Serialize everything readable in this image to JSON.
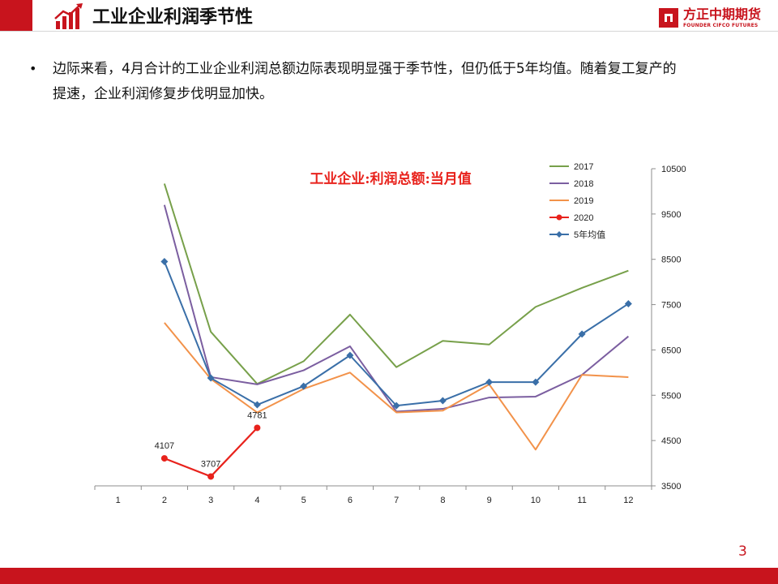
{
  "header": {
    "title": "工业企业利润季节性",
    "icon": "rising-bar-chart-icon",
    "accent_color": "#c8141d"
  },
  "brand": {
    "name": "方正中期期货",
    "subtitle": "FOUNDER CIFCO FUTURES",
    "logo": "founder-logo-icon"
  },
  "bullet": {
    "text_line1": "边际来看，4月合计的工业企业利润总额边际表现明显强于季节性，但仍低于5年均值。随着复工复产的",
    "text_line2": "提速，企业利润修复步伐明显加快。"
  },
  "page_number": "3",
  "chart_data": {
    "type": "line",
    "title": "工业企业:利润总额:当月值",
    "title_color": "#e8221c",
    "x": [
      1,
      2,
      3,
      4,
      5,
      6,
      7,
      8,
      9,
      10,
      11,
      12
    ],
    "x_tick_labels": [
      "1",
      "2",
      "3",
      "4",
      "5",
      "6",
      "7",
      "8",
      "9",
      "10",
      "11",
      "12"
    ],
    "y_ticks": [
      3500,
      4500,
      5500,
      6500,
      7500,
      8500,
      9500,
      10500
    ],
    "ylim": [
      3500,
      10500
    ],
    "y_axis_side": "right",
    "grid": false,
    "legend_position": "top-right",
    "series": [
      {
        "name": "2017",
        "color": "#77a04a",
        "marker": "none",
        "values": [
          null,
          10170,
          6900,
          5750,
          6250,
          7280,
          6120,
          6700,
          6620,
          7450,
          7870,
          8250
        ]
      },
      {
        "name": "2018",
        "color": "#7b5ea0",
        "marker": "none",
        "values": [
          null,
          9700,
          5900,
          5740,
          6050,
          6580,
          5140,
          5200,
          5450,
          5470,
          5950,
          6800
        ]
      },
      {
        "name": "2019",
        "color": "#f2924a",
        "marker": "none",
        "values": [
          null,
          7100,
          5860,
          5120,
          5640,
          6000,
          5120,
          5160,
          5740,
          4300,
          5950,
          5900
        ]
      },
      {
        "name": "2020",
        "color": "#e8221c",
        "marker": "circle",
        "values": [
          null,
          4107,
          3707,
          4781,
          null,
          null,
          null,
          null,
          null,
          null,
          null,
          null
        ],
        "data_labels": [
          "",
          "4107",
          "3707",
          "4781",
          "",
          "",
          "",
          "",
          "",
          "",
          "",
          ""
        ]
      },
      {
        "name": "5年均值",
        "color": "#3a6fa8",
        "marker": "diamond",
        "values": [
          null,
          8450,
          5880,
          5290,
          5700,
          6380,
          5270,
          5380,
          5790,
          5790,
          6850,
          7520
        ]
      }
    ]
  }
}
